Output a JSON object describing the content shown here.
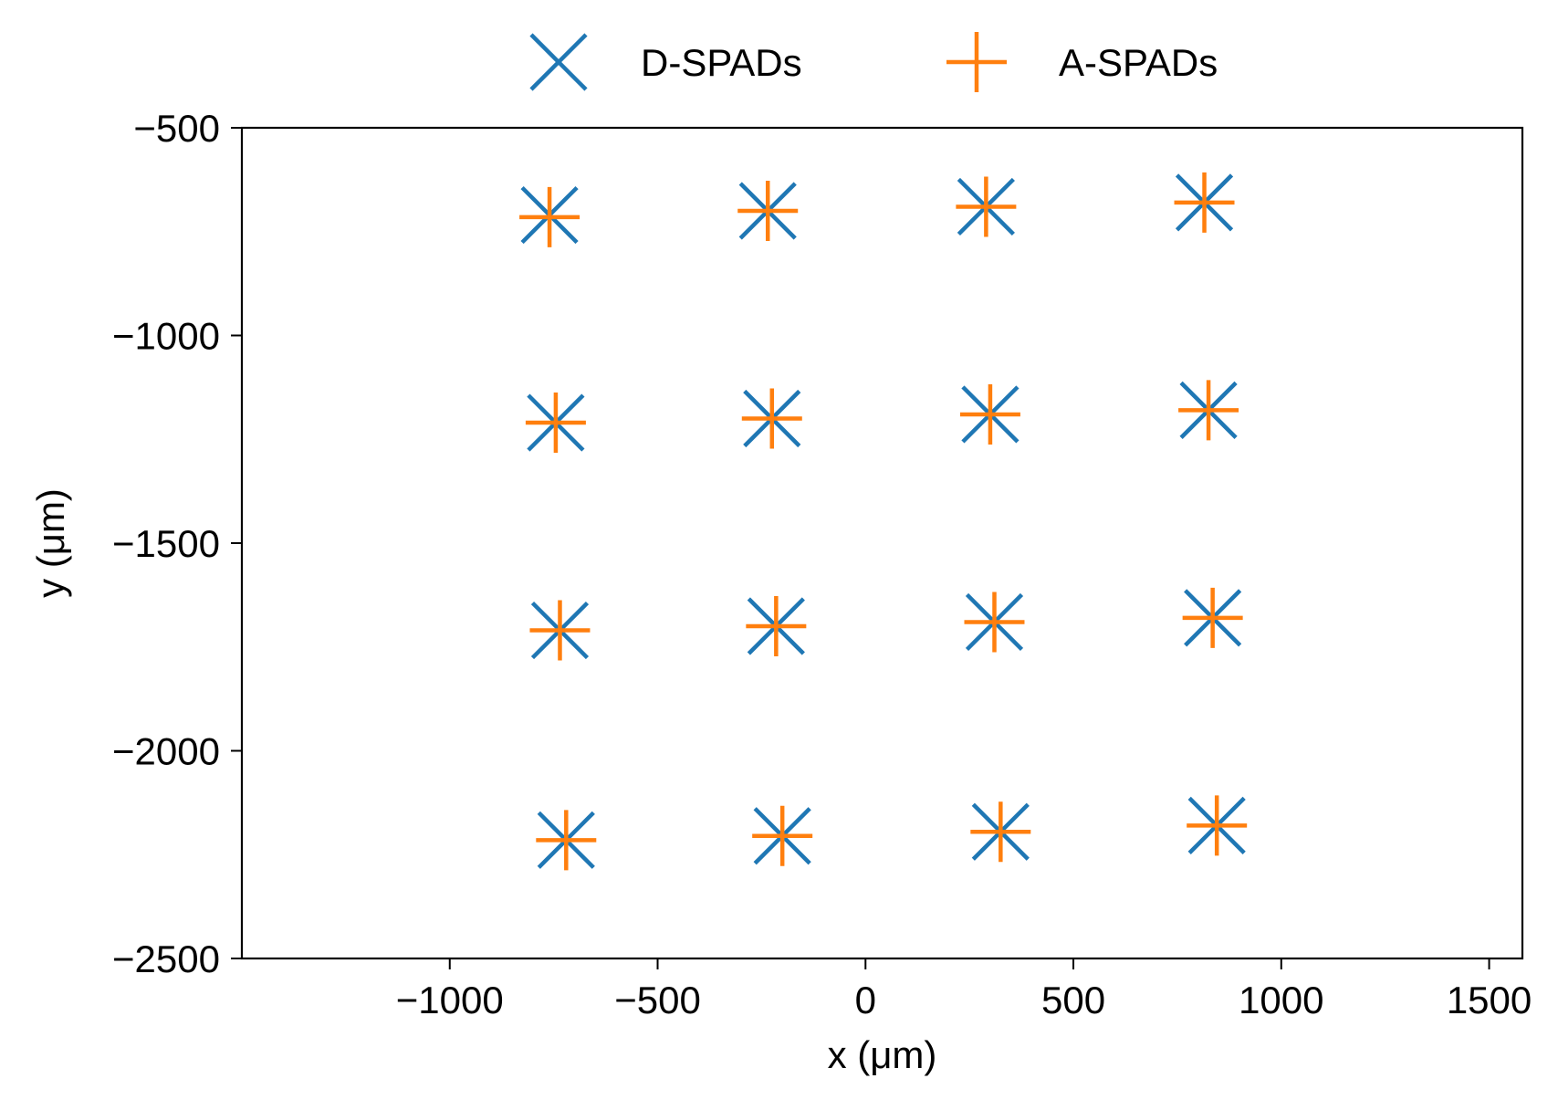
{
  "chart_data": {
    "type": "scatter",
    "title": "",
    "xlabel": "x (μm)",
    "ylabel": "y (μm)",
    "xlim": [
      -1500,
      1580
    ],
    "ylim": [
      -2500,
      -500
    ],
    "xticks": [
      -1000,
      -500,
      0,
      500,
      1000,
      1500
    ],
    "xtick_labels": [
      "−1000",
      "−500",
      "0",
      "500",
      "1000",
      "1500"
    ],
    "yticks": [
      -500,
      -1000,
      -1500,
      -2000,
      -2500
    ],
    "ytick_labels": [
      "−500",
      "−1000",
      "−1500",
      "−2000",
      "−2500"
    ],
    "grid": false,
    "legend_position": "top-center, above plot",
    "series": [
      {
        "name": "D-SPADs",
        "marker": "x",
        "color": "#1f77b4",
        "points": [
          {
            "x": -760,
            "y": -710
          },
          {
            "x": -235,
            "y": -700
          },
          {
            "x": 290,
            "y": -690
          },
          {
            "x": 815,
            "y": -680
          },
          {
            "x": -745,
            "y": -1210
          },
          {
            "x": -225,
            "y": -1200
          },
          {
            "x": 300,
            "y": -1190
          },
          {
            "x": 825,
            "y": -1180
          },
          {
            "x": -735,
            "y": -1710
          },
          {
            "x": -215,
            "y": -1700
          },
          {
            "x": 310,
            "y": -1690
          },
          {
            "x": 835,
            "y": -1680
          },
          {
            "x": -720,
            "y": -2215
          },
          {
            "x": -200,
            "y": -2205
          },
          {
            "x": 325,
            "y": -2195
          },
          {
            "x": 845,
            "y": -2180
          }
        ]
      },
      {
        "name": "A-SPADs",
        "marker": "+",
        "color": "#ff7f0e",
        "points": [
          {
            "x": -760,
            "y": -715
          },
          {
            "x": -235,
            "y": -700
          },
          {
            "x": 290,
            "y": -690
          },
          {
            "x": 815,
            "y": -680
          },
          {
            "x": -745,
            "y": -1210
          },
          {
            "x": -225,
            "y": -1200
          },
          {
            "x": 300,
            "y": -1190
          },
          {
            "x": 825,
            "y": -1180
          },
          {
            "x": -735,
            "y": -1710
          },
          {
            "x": -215,
            "y": -1700
          },
          {
            "x": 310,
            "y": -1690
          },
          {
            "x": 835,
            "y": -1680
          },
          {
            "x": -720,
            "y": -2215
          },
          {
            "x": -200,
            "y": -2205
          },
          {
            "x": 325,
            "y": -2195
          },
          {
            "x": 845,
            "y": -2180
          }
        ]
      }
    ]
  }
}
